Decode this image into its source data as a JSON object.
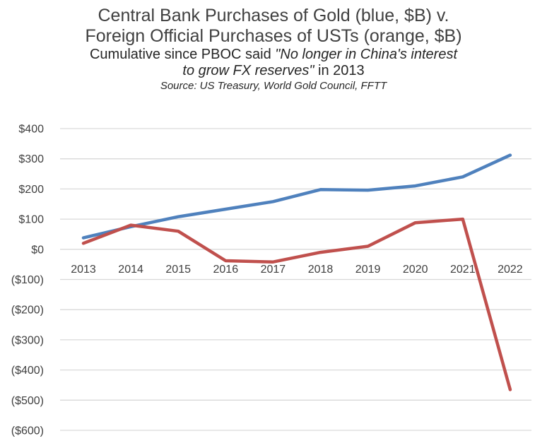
{
  "chart_data": {
    "type": "line",
    "title_line1": "Central Bank Purchases of Gold (blue, $B) v.",
    "title_line2": "Foreign Official Purchases of USTs (orange, $B)",
    "subtitle_prefix": "Cumulative since PBOC said ",
    "subtitle_quote_part1": "\"No longer in China's interest",
    "subtitle_quote_part2": "to grow FX reserves\"",
    "subtitle_suffix": " in 2013",
    "source": "Source: US Treasury, World Gold Council, FFTT",
    "categories": [
      "2013",
      "2014",
      "2015",
      "2016",
      "2017",
      "2018",
      "2019",
      "2020",
      "2021",
      "2022"
    ],
    "yticks": [
      400,
      300,
      200,
      100,
      0,
      -100,
      -200,
      -300,
      -400,
      -500,
      -600
    ],
    "ytick_labels": [
      "$400",
      "$300",
      "$200",
      "$100",
      "$0",
      "($100)",
      "($200)",
      "($300)",
      "($400)",
      "($500)",
      "($600)"
    ],
    "ylim": [
      -600,
      400
    ],
    "grid": true,
    "series": [
      {
        "name": "Central Bank Purchases of Gold",
        "color": "#4f81bd",
        "values": [
          38,
          75,
          108,
          133,
          158,
          198,
          196,
          210,
          240,
          312
        ]
      },
      {
        "name": "Foreign Official Purchases of USTs",
        "color": "#c0504d",
        "values": [
          20,
          80,
          60,
          -38,
          -42,
          -10,
          10,
          88,
          100,
          -465
        ]
      }
    ]
  }
}
